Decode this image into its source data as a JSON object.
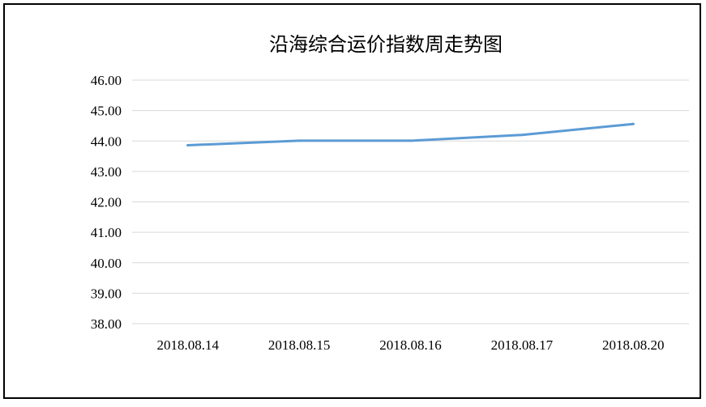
{
  "chart_data": {
    "type": "line",
    "title": "沿海综合运价指数周走势图",
    "xlabel": "",
    "ylabel": "",
    "categories": [
      "2018.08.14",
      "2018.08.15",
      "2018.08.16",
      "2018.08.17",
      "2018.08.20"
    ],
    "series": [
      {
        "values": [
          43.86,
          44.01,
          44.01,
          44.2,
          44.56
        ],
        "color": "#5b9bd5"
      }
    ],
    "ylim": [
      38,
      46
    ],
    "ytick_labels": [
      "46.00",
      "45.00",
      "44.00",
      "43.00",
      "42.00",
      "41.00",
      "40.00",
      "39.00",
      "38.00"
    ],
    "grid": true,
    "legend": "none",
    "colors": {
      "grid": "#d9d9d9",
      "text": "#000000",
      "frame": "#000000"
    }
  }
}
